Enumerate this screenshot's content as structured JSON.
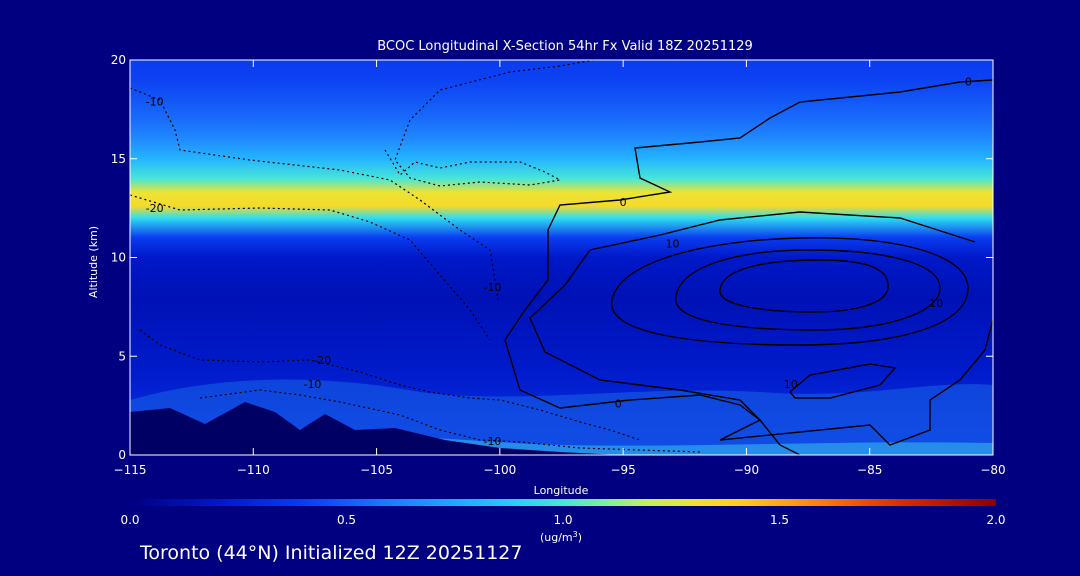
{
  "chart_data": {
    "type": "heatmap",
    "title": "BCOC Longitudinal X-Section 54hr  Fx Valid 18Z 20251129",
    "xlabel": "Longitude",
    "ylabel": "Altitude (km)",
    "xlim": [
      -115,
      -80
    ],
    "ylim": [
      0,
      20
    ],
    "x_ticks": [
      -115,
      -110,
      -105,
      -100,
      -95,
      -90,
      -85,
      -80
    ],
    "x_tick_labels": [
      "−115",
      "−110",
      "−105",
      "−100",
      "−95",
      "−90",
      "−85",
      "−80"
    ],
    "y_ticks": [
      0,
      5,
      10,
      15,
      20
    ],
    "y_tick_labels": [
      "0",
      "5",
      "10",
      "15",
      "20"
    ],
    "colorbar": {
      "min": 0.0,
      "max": 2.0,
      "ticks": [
        "0.0",
        "0.5",
        "1.0",
        "1.5",
        "2.0"
      ],
      "units_main": "(ug/m",
      "units_sup": "3",
      "units_end": ")"
    },
    "field": {
      "description_levels_km": [
        0,
        2,
        4,
        6,
        8,
        10,
        11,
        12,
        12.6,
        13.3,
        14,
        15,
        16,
        17,
        18,
        19,
        20
      ],
      "concentration_ug_m3": [
        0.35,
        0.3,
        0.22,
        0.18,
        0.15,
        0.2,
        0.4,
        0.95,
        1.35,
        1.3,
        1.0,
        0.8,
        0.65,
        0.55,
        0.48,
        0.42,
        0.4
      ]
    },
    "contours": [
      {
        "label": "0",
        "style": "solid"
      },
      {
        "label": "10",
        "style": "solid"
      },
      {
        "label": "-10",
        "style": "dotted"
      },
      {
        "label": "-20",
        "style": "dotted"
      }
    ],
    "contour_labels": [
      {
        "text": "0",
        "lon": -81.0,
        "alt": 18.9
      },
      {
        "text": "-10",
        "lon": -114.0,
        "alt": 17.9
      },
      {
        "text": "-20",
        "lon": -114.0,
        "alt": 12.5
      },
      {
        "text": "0",
        "lon": -95.0,
        "alt": 12.8
      },
      {
        "text": "10",
        "lon": -93.0,
        "alt": 10.7
      },
      {
        "text": "10",
        "lon": -82.3,
        "alt": 7.7
      },
      {
        "text": "10",
        "lon": -88.2,
        "alt": 3.6
      },
      {
        "text": "-10",
        "lon": -100.3,
        "alt": 8.5
      },
      {
        "text": "-20",
        "lon": -107.2,
        "alt": 4.8
      },
      {
        "text": "-10",
        "lon": -107.6,
        "alt": 3.6
      },
      {
        "text": "0",
        "lon": -95.2,
        "alt": 2.6
      },
      {
        "text": "-10",
        "lon": -100.3,
        "alt": 0.7
      }
    ]
  },
  "footer": {
    "text": "Toronto (44°N) Initialized 12Z 20251127"
  }
}
